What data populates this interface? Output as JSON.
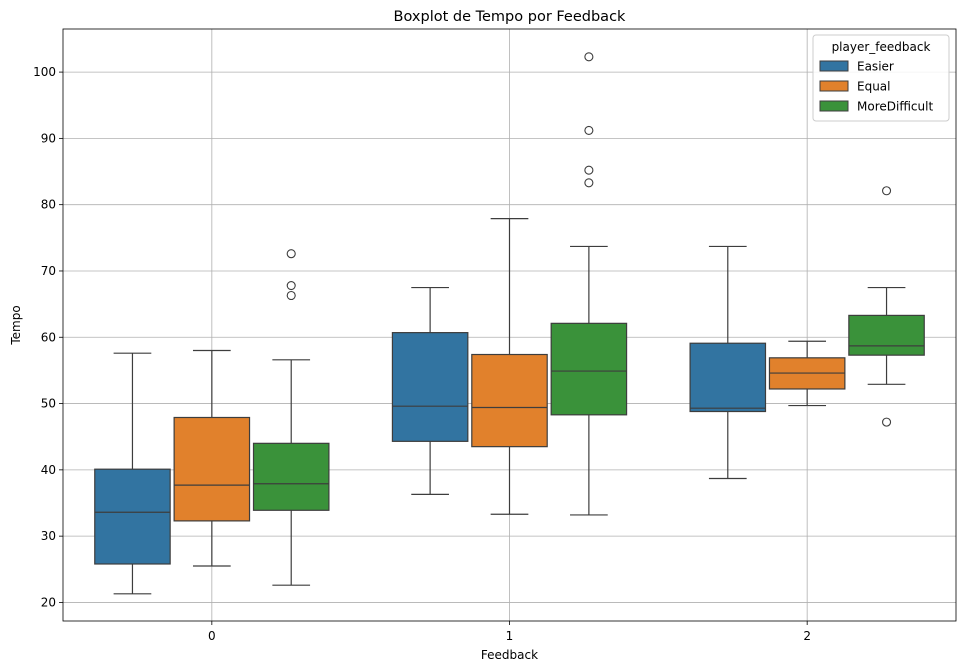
{
  "chart_data": {
    "type": "boxplot",
    "title": "Boxplot de Tempo por Feedback",
    "xlabel": "Feedback",
    "ylabel": "Tempo",
    "categories": [
      "0",
      "1",
      "2"
    ],
    "ylim": [
      17.2,
      106.5
    ],
    "yticks": [
      20,
      30,
      40,
      50,
      60,
      70,
      80,
      90,
      100
    ],
    "grid": true,
    "legend": {
      "title": "player_feedback",
      "position": "top-right"
    },
    "series": [
      {
        "name": "Easier",
        "color": "#3274a1",
        "boxes": [
          {
            "category": "0",
            "whisker_low": 21.3,
            "q1": 25.8,
            "median": 33.6,
            "q3": 40.1,
            "whisker_high": 57.6,
            "outliers": []
          },
          {
            "category": "1",
            "whisker_low": 36.3,
            "q1": 44.3,
            "median": 49.6,
            "q3": 60.7,
            "whisker_high": 67.5,
            "outliers": []
          },
          {
            "category": "2",
            "whisker_low": 38.7,
            "q1": 48.8,
            "median": 49.3,
            "q3": 59.1,
            "whisker_high": 73.7,
            "outliers": []
          }
        ]
      },
      {
        "name": "Equal",
        "color": "#e1812c",
        "boxes": [
          {
            "category": "0",
            "whisker_low": 25.5,
            "q1": 32.3,
            "median": 37.7,
            "q3": 47.9,
            "whisker_high": 58.0,
            "outliers": []
          },
          {
            "category": "1",
            "whisker_low": 33.3,
            "q1": 43.5,
            "median": 49.4,
            "q3": 57.4,
            "whisker_high": 77.9,
            "outliers": []
          },
          {
            "category": "2",
            "whisker_low": 49.7,
            "q1": 52.2,
            "median": 54.6,
            "q3": 56.9,
            "whisker_high": 59.4,
            "outliers": []
          }
        ]
      },
      {
        "name": "MoreDifficult",
        "color": "#3a923a",
        "boxes": [
          {
            "category": "0",
            "whisker_low": 22.6,
            "q1": 33.9,
            "median": 37.9,
            "q3": 44.0,
            "whisker_high": 56.6,
            "outliers": [
              66.3,
              67.8,
              72.6
            ]
          },
          {
            "category": "1",
            "whisker_low": 33.2,
            "q1": 48.3,
            "median": 54.9,
            "q3": 62.1,
            "whisker_high": 73.7,
            "outliers": [
              83.3,
              85.2,
              91.2,
              102.3
            ]
          },
          {
            "category": "2",
            "whisker_low": 52.9,
            "q1": 57.3,
            "median": 58.7,
            "q3": 63.3,
            "whisker_high": 67.5,
            "outliers": [
              47.2,
              82.1
            ]
          }
        ]
      }
    ]
  }
}
